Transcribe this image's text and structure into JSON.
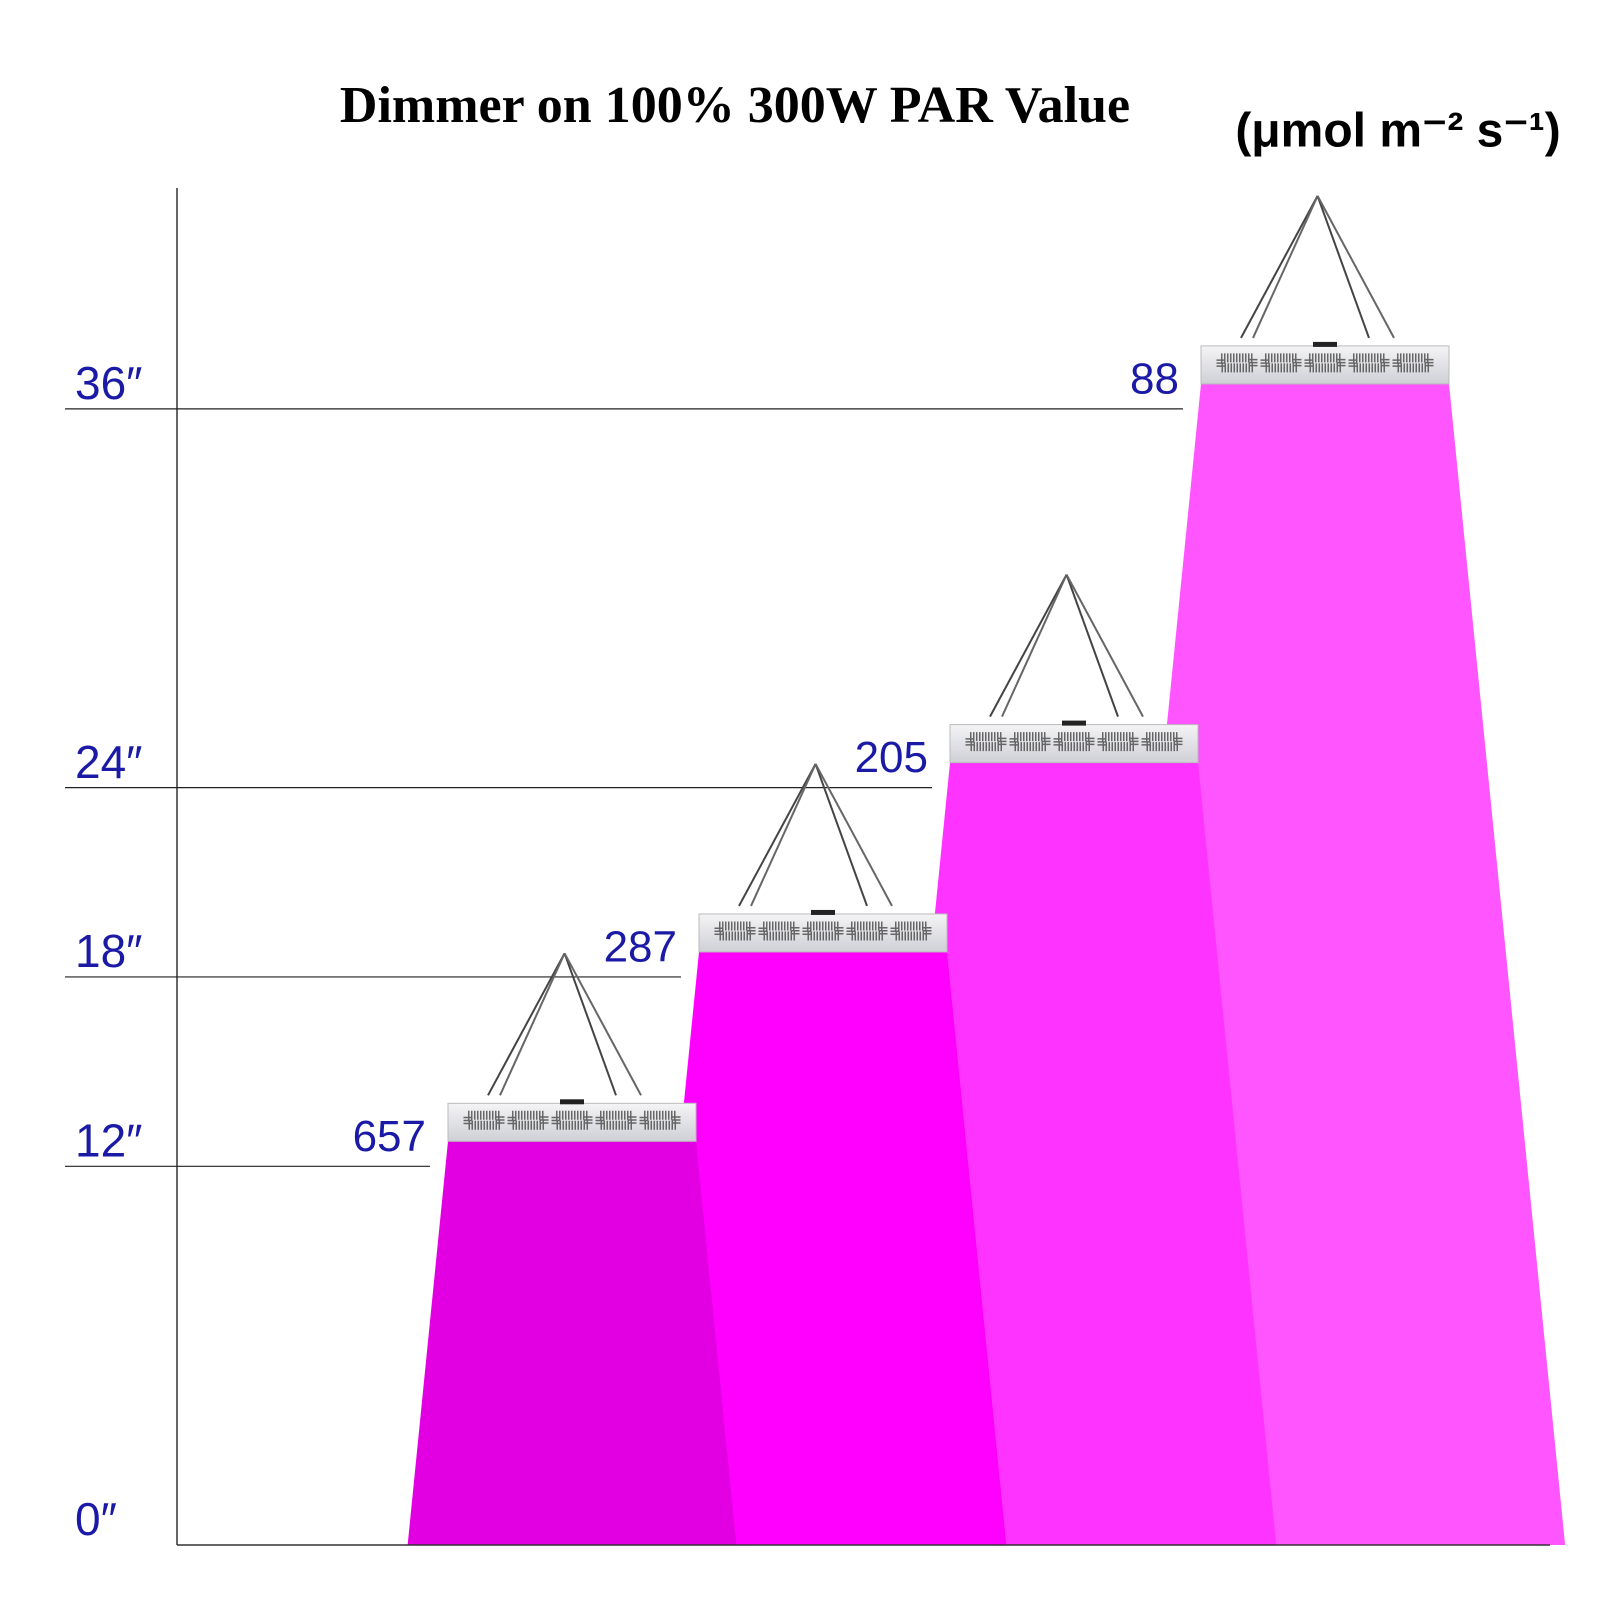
{
  "chart_data": {
    "type": "lamp-cone",
    "title": "Dimmer on 100% 300W PAR Value",
    "unit": "(μmol m⁻² s⁻¹)",
    "heights": [
      12,
      18,
      24,
      36
    ],
    "values": [
      657,
      287,
      205,
      88
    ],
    "colors": [
      "#e200e2",
      "#ff00ff",
      "#ff33ff",
      "#ff55ff"
    ],
    "ylim": [
      0,
      43
    ],
    "yticks": [
      {
        "value": 0,
        "label": "0″"
      },
      {
        "value": 12,
        "label": "12″"
      },
      {
        "value": 18,
        "label": "18″"
      },
      {
        "value": 24,
        "label": "24″"
      },
      {
        "value": 36,
        "label": "36″"
      }
    ],
    "grid": true
  }
}
